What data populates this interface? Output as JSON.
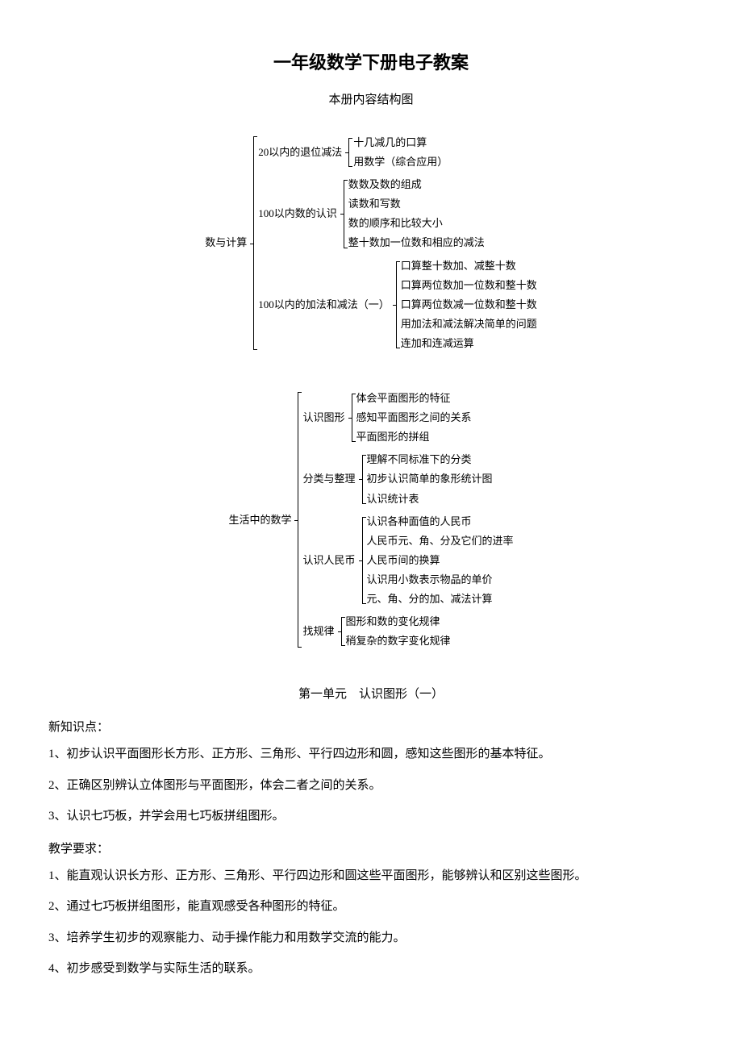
{
  "title": "一年级数学下册电子教案",
  "subtitle": "本册内容结构图",
  "tree1": {
    "root": "数与计算",
    "branches": [
      {
        "label": "20以内的退位减法",
        "leaves": [
          "十几减几的口算",
          "用数学（综合应用）"
        ]
      },
      {
        "label": "100以内数的认识",
        "leaves": [
          "数数及数的组成",
          "读数和写数",
          "数的顺序和比较大小",
          "整十数加一位数和相应的减法"
        ]
      },
      {
        "label": "100以内的加法和减法（一）",
        "leaves": [
          "口算整十数加、减整十数",
          "口算两位数加一位数和整十数",
          "口算两位数减一位数和整十数",
          "用加法和减法解决简单的问题",
          "连加和连减运算"
        ]
      }
    ]
  },
  "tree2": {
    "root": "生活中的数学",
    "branches": [
      {
        "label": "认识图形",
        "leaves": [
          "体会平面图形的特征",
          "感知平面图形之间的关系",
          "平面图形的拼组"
        ]
      },
      {
        "label": "分类与整理",
        "leaves": [
          "理解不同标准下的分类",
          "初步认识简单的象形统计图",
          "认识统计表"
        ]
      },
      {
        "label": "认识人民币",
        "leaves": [
          "认识各种面值的人民币",
          "人民币元、角、分及它们的进率",
          "人民币间的换算",
          "认识用小数表示物品的单价",
          "元、角、分的加、减法计算"
        ]
      },
      {
        "label": "找规律",
        "leaves": [
          "图形和数的变化规律",
          "稍复杂的数字变化规律"
        ]
      }
    ]
  },
  "unitTitle": "第一单元　认识图形（一）",
  "knowledgeHead": "新知识点：",
  "knowledgePoints": [
    "1、初步认识平面图形长方形、正方形、三角形、平行四边形和圆，感知这些图形的基本特征。",
    "2、正确区别辨认立体图形与平面图形，体会二者之间的关系。",
    "3、认识七巧板，并学会用七巧板拼组图形。"
  ],
  "reqHead": "教学要求：",
  "reqPoints": [
    "1、能直观认识长方形、正方形、三角形、平行四边形和圆这些平面图形，能够辨认和区别这些图形。",
    "2、通过七巧板拼组图形，能直观感受各种图形的特征。",
    "3、培养学生初步的观察能力、动手操作能力和用数学交流的能力。",
    "4、初步感受到数学与实际生活的联系。"
  ]
}
